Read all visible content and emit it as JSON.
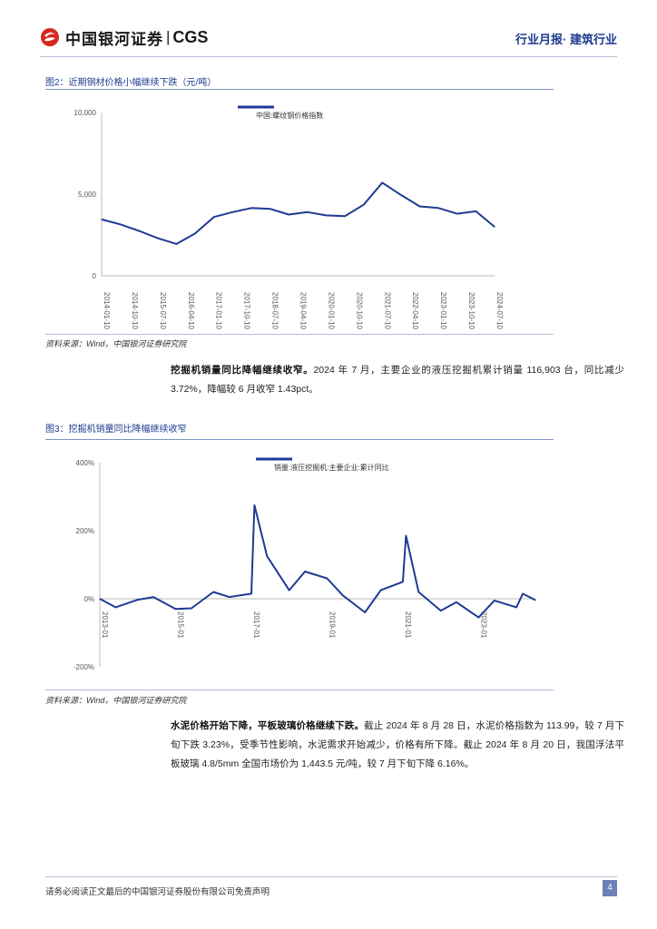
{
  "header": {
    "logo_cn": "中国银河证券",
    "logo_sep": "|",
    "logo_en": "CGS",
    "right_label": "行业月报· 建筑行业"
  },
  "figure2": {
    "title": "图2：近期钢材价格小幅继续下跌（元/吨）",
    "source": "资料来源：Wind，中国银河证券研究院",
    "chart_data": {
      "type": "line",
      "series": [
        {
          "name": "中国:螺纹钢价格指数",
          "x": [
            "2014-01-10",
            "2014-07-10",
            "2015-01-10",
            "2015-07-10",
            "2016-01-10",
            "2016-07-10",
            "2017-01-10",
            "2017-07-10",
            "2018-01-10",
            "2018-07-10",
            "2019-01-10",
            "2019-07-10",
            "2020-01-10",
            "2020-07-10",
            "2021-01-10",
            "2021-07-10",
            "2022-01-10",
            "2022-07-10",
            "2023-01-10",
            "2023-07-10",
            "2024-01-10",
            "2024-07-10"
          ],
          "values": [
            3450,
            3150,
            2750,
            2300,
            1950,
            2600,
            3600,
            3900,
            4150,
            4100,
            3750,
            3900,
            3700,
            3650,
            4350,
            5700,
            4950,
            4250,
            4150,
            3800,
            3950,
            3000
          ]
        }
      ],
      "ylim": [
        0,
        10000
      ],
      "yticks": [
        "10,000",
        "5,000",
        "0"
      ],
      "xticks": [
        "2014-01-10",
        "2014-10-10",
        "2015-07-10",
        "2016-04-10",
        "2017-01-10",
        "2017-10-10",
        "2018-07-10",
        "2019-04-10",
        "2020-01-10",
        "2020-10-10",
        "2021-07-10",
        "2022-04-10",
        "2023-01-10",
        "2023-10-10",
        "2024-07-10"
      ]
    }
  },
  "para1": {
    "bold": "挖掘机销量同比降幅继续收窄。",
    "text": "2024 年 7 月，主要企业的液压挖掘机累计销量 116,903 台，同比减少 3.72%，降幅较 6 月收窄 1.43pct。"
  },
  "figure3": {
    "title": "图3：挖掘机销量同比降幅继续收窄",
    "source": "资料来源：Wind，中国银河证券研究院",
    "chart_data": {
      "type": "line",
      "series": [
        {
          "name": "销量:液压挖掘机:主要企业:累计同比",
          "x": [
            "2013-01",
            "2013-06",
            "2014-01",
            "2014-06",
            "2015-01",
            "2015-06",
            "2016-01",
            "2016-06",
            "2017-01",
            "2017-02",
            "2017-06",
            "2018-01",
            "2018-06",
            "2019-01",
            "2019-06",
            "2020-01",
            "2020-06",
            "2021-01",
            "2021-02",
            "2021-06",
            "2022-01",
            "2022-06",
            "2023-01",
            "2023-06",
            "2024-01",
            "2024-03",
            "2024-07"
          ],
          "values": [
            0,
            -25,
            -3,
            5,
            -30,
            -28,
            20,
            5,
            15,
            275,
            125,
            25,
            80,
            60,
            10,
            -40,
            25,
            50,
            185,
            20,
            -35,
            -10,
            -55,
            -5,
            -25,
            15,
            -4
          ]
        }
      ],
      "ylim": [
        -200,
        400
      ],
      "yticks": [
        "400%",
        "200%",
        "0%",
        "-200%"
      ],
      "xticks": [
        "2013-01",
        "2015-01",
        "2017-01",
        "2019-01",
        "2021-01",
        "2023-01"
      ]
    }
  },
  "para2": {
    "bold": "水泥价格开始下降，平板玻璃价格继续下跌。",
    "text": "截止 2024 年 8 月 28 日，水泥价格指数为 113.99，较 7 月下旬下跌 3.23%，受季节性影响，水泥需求开始减少，价格有所下降。截止 2024 年 8 月 20 日，我国浮法平板玻璃 4.8/5mm 全国市场价为 1,443.5 元/吨，较 7 月下旬下降 6.16%。"
  },
  "footer": {
    "disclaimer": "请务必阅读正文最后的中国银河证券股份有限公司免责声明",
    "page": "4"
  },
  "colors": {
    "brand_red": "#d7261e",
    "brand_blue": "#1d3a8f",
    "line": "#1f3a93"
  }
}
